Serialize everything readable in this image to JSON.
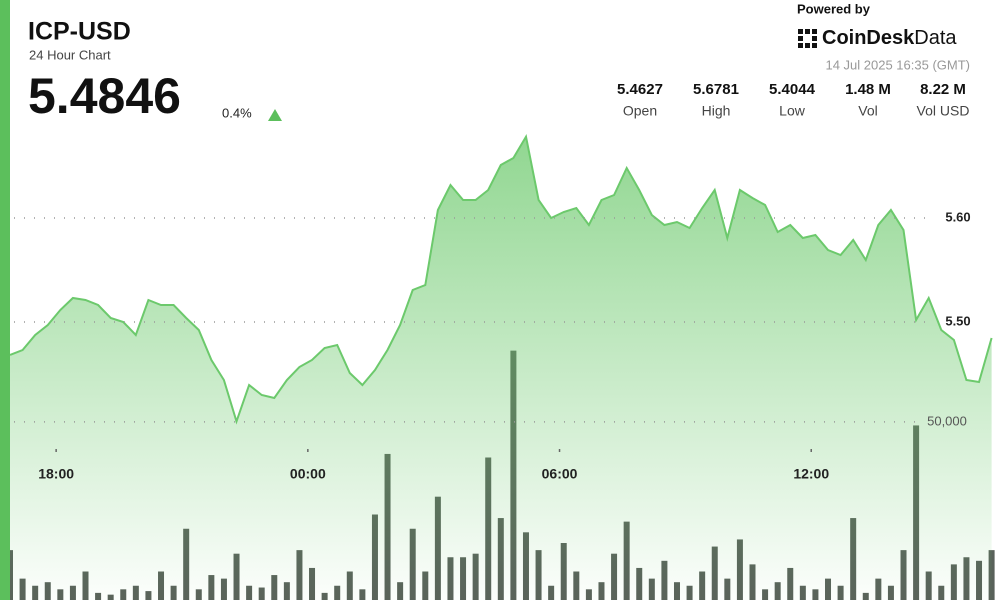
{
  "chart_data": {
    "type": "line",
    "title": "ICP-USD",
    "subtitle": "24 Hour Chart",
    "last_price": "5.4846",
    "change": "0.4%",
    "powered_by": "Powered by",
    "brand": "CoinDesk",
    "brand_suffix": "Data",
    "timestamp": "14 Jul 2025 16:35 (GMT)",
    "stats": [
      {
        "value": "5.4627",
        "label": "Open"
      },
      {
        "value": "5.6781",
        "label": "High"
      },
      {
        "value": "5.4044",
        "label": "Low"
      },
      {
        "value": "1.48 M",
        "label": "Vol"
      },
      {
        "value": "8.22 M",
        "label": "Vol USD"
      }
    ],
    "x": [
      16.9,
      17.2,
      17.5,
      17.8,
      18.1,
      18.4,
      18.7,
      19.0,
      19.3,
      19.6,
      19.9,
      20.2,
      20.5,
      20.8,
      21.1,
      21.4,
      21.7,
      22.0,
      22.3,
      22.6,
      22.9,
      23.2,
      23.5,
      23.8,
      24.1,
      24.4,
      24.7,
      25.0,
      25.3,
      25.6,
      25.9,
      26.2,
      26.5,
      26.8,
      27.1,
      27.4,
      27.7,
      28.0,
      28.3,
      28.6,
      28.9,
      29.2,
      29.5,
      29.8,
      30.1,
      30.4,
      30.7,
      31.0,
      31.3,
      31.6,
      31.9,
      32.2,
      32.5,
      32.8,
      33.1,
      33.4,
      33.7,
      34.0,
      34.3,
      34.6,
      34.9,
      35.2,
      35.5,
      35.8,
      36.1,
      36.4,
      36.7,
      37.0,
      37.3,
      37.6,
      37.9,
      38.2,
      38.5,
      38.8,
      39.1,
      39.4,
      39.7,
      40.0,
      40.3
    ],
    "series": [
      {
        "name": "Price",
        "color": "#6cc96c",
        "values": [
          5.4683,
          5.4731,
          5.4875,
          5.4971,
          5.5115,
          5.5231,
          5.5212,
          5.5163,
          5.5038,
          5.5,
          5.4875,
          5.5212,
          5.5163,
          5.5163,
          5.5038,
          5.4923,
          5.4635,
          5.4442,
          5.4044,
          5.4394,
          5.4298,
          5.4269,
          5.4442,
          5.4567,
          5.4635,
          5.475,
          5.4779,
          5.451,
          5.4394,
          5.4538,
          5.4731,
          5.4971,
          5.5308,
          5.5356,
          5.6077,
          5.6317,
          5.6173,
          5.6173,
          5.6269,
          5.651,
          5.6577,
          5.6781,
          5.6173,
          5.6,
          5.6058,
          5.6096,
          5.5933,
          5.6173,
          5.6221,
          5.6481,
          5.6269,
          5.6029,
          5.5933,
          5.5962,
          5.5904,
          5.6096,
          5.6269,
          5.5808,
          5.6269,
          5.6192,
          5.6125,
          5.5865,
          5.5933,
          5.5808,
          5.5837,
          5.5692,
          5.5644,
          5.5788,
          5.5596,
          5.5933,
          5.6077,
          5.5885,
          5.5019,
          5.5231,
          5.4923,
          5.4827,
          5.4442,
          5.4423,
          5.4846
        ]
      },
      {
        "name": "Volume",
        "color": "#59615a",
        "axis": "y2",
        "values": [
          14000,
          6000,
          4000,
          5000,
          3000,
          4000,
          8000,
          2000,
          1500,
          3000,
          4000,
          2500,
          8000,
          4000,
          20000,
          3000,
          7000,
          6000,
          13000,
          4000,
          3500,
          7000,
          5000,
          14000,
          9000,
          2000,
          4000,
          8000,
          3000,
          24000,
          41000,
          5000,
          20000,
          8000,
          29000,
          12000,
          12000,
          13000,
          40000,
          23000,
          70000,
          19000,
          14000,
          4000,
          16000,
          8000,
          3000,
          5000,
          13000,
          22000,
          9000,
          6000,
          11000,
          5000,
          4000,
          8000,
          15000,
          6000,
          17000,
          10000,
          3000,
          5000,
          9000,
          4000,
          3000,
          6000,
          4000,
          23000,
          2000,
          6000,
          4000,
          14000,
          49000,
          8000,
          4000,
          10000,
          12000,
          11000,
          14000
        ]
      }
    ],
    "xlim": [
      16.9,
      40.5
    ],
    "xticks": [
      {
        "value": 18,
        "label": "18:00"
      },
      {
        "value": 24,
        "label": "00:00"
      },
      {
        "value": 30,
        "label": "06:00"
      },
      {
        "value": 36,
        "label": "12:00"
      }
    ],
    "ylim": [
      5.4,
      5.685
    ],
    "yticks": [
      {
        "value": 5.5,
        "label": "5.50"
      },
      {
        "value": 5.6,
        "label": "5.60"
      }
    ],
    "y2lim": [
      0,
      80000
    ],
    "y2ticks": [
      {
        "value": 50000,
        "label": "50,000"
      }
    ],
    "grid": true
  }
}
